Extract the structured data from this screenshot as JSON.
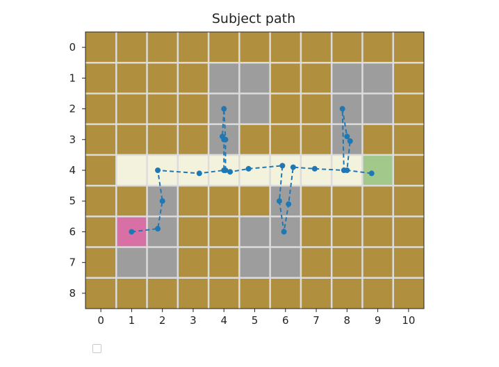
{
  "chart_data": {
    "type": "heatmap",
    "title": "Subject path",
    "xlabel": "",
    "ylabel": "",
    "x_ticks": [
      "0",
      "1",
      "2",
      "3",
      "4",
      "5",
      "6",
      "7",
      "8",
      "9",
      "10"
    ],
    "y_ticks": [
      "0",
      "1",
      "2",
      "3",
      "4",
      "5",
      "6",
      "7",
      "8"
    ],
    "n_cols": 11,
    "n_rows": 9,
    "grid_lines": true,
    "cell_colors": {
      "wall": "#b08f3e",
      "gray": "#9d9d9d",
      "corridor": "#f3f2dc",
      "start": "#d870a6",
      "goal": "#a2c88c",
      "gridline": "#dcdcdc"
    },
    "grid": [
      [
        "wall",
        "wall",
        "wall",
        "wall",
        "wall",
        "wall",
        "wall",
        "wall",
        "wall",
        "wall",
        "wall"
      ],
      [
        "wall",
        "wall",
        "wall",
        "wall",
        "gray",
        "gray",
        "wall",
        "wall",
        "gray",
        "gray",
        "wall"
      ],
      [
        "wall",
        "wall",
        "wall",
        "wall",
        "gray",
        "gray",
        "wall",
        "wall",
        "gray",
        "gray",
        "wall"
      ],
      [
        "wall",
        "wall",
        "wall",
        "wall",
        "gray",
        "wall",
        "wall",
        "wall",
        "gray",
        "wall",
        "wall"
      ],
      [
        "wall",
        "corridor",
        "corridor",
        "corridor",
        "corridor",
        "corridor",
        "corridor",
        "corridor",
        "corridor",
        "goal",
        "wall"
      ],
      [
        "wall",
        "wall",
        "gray",
        "wall",
        "wall",
        "wall",
        "gray",
        "wall",
        "wall",
        "wall",
        "wall"
      ],
      [
        "wall",
        "start",
        "gray",
        "wall",
        "wall",
        "gray",
        "gray",
        "wall",
        "wall",
        "wall",
        "wall"
      ],
      [
        "wall",
        "gray",
        "gray",
        "wall",
        "wall",
        "gray",
        "gray",
        "wall",
        "wall",
        "wall",
        "wall"
      ],
      [
        "wall",
        "wall",
        "wall",
        "wall",
        "wall",
        "wall",
        "wall",
        "wall",
        "wall",
        "wall",
        "wall"
      ]
    ],
    "path": {
      "color": "#1f77b4",
      "style": "dashed",
      "marker": "circle",
      "points": [
        [
          1.0,
          6.0
        ],
        [
          1.85,
          5.9
        ],
        [
          2.0,
          5.0
        ],
        [
          1.85,
          4.0
        ],
        [
          3.2,
          4.1
        ],
        [
          4.0,
          4.0
        ],
        [
          4.0,
          3.0
        ],
        [
          3.95,
          2.9
        ],
        [
          4.0,
          2.0
        ],
        [
          4.05,
          3.0
        ],
        [
          4.05,
          4.0
        ],
        [
          4.2,
          4.05
        ],
        [
          4.8,
          3.95
        ],
        [
          5.9,
          3.85
        ],
        [
          5.8,
          5.0
        ],
        [
          5.95,
          6.0
        ],
        [
          6.1,
          5.1
        ],
        [
          6.25,
          3.9
        ],
        [
          6.95,
          3.95
        ],
        [
          7.9,
          4.0
        ],
        [
          7.85,
          2.0
        ],
        [
          8.0,
          2.9
        ],
        [
          8.1,
          3.05
        ],
        [
          8.0,
          4.0
        ],
        [
          8.8,
          4.1
        ]
      ]
    },
    "legend": {
      "placement": "bottom-left",
      "entries": [
        ""
      ]
    }
  }
}
